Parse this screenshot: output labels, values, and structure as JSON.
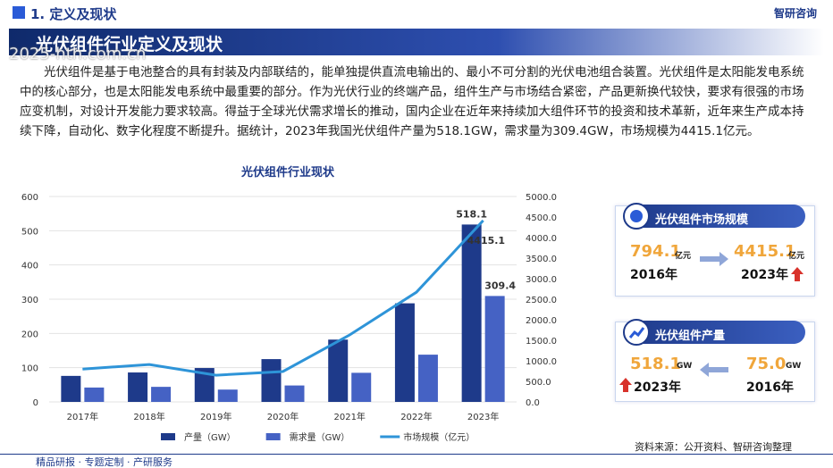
{
  "header": {
    "section": "1. 定义及现状",
    "logo": "智研咨询"
  },
  "banner": "光伏组件行业定义及现状",
  "watermark": "2025-hth.com.cn",
  "paragraph": "光伏组件是基于电池整合的具有封装及内部联结的，能单独提供直流电输出的、最小不可分割的光伏电池组合装置。光伏组件是太阳能发电系统中的核心部分，也是太阳能发电系统中最重要的部分。作为光伏行业的终端产品，组件生产与市场结合紧密，产品更新换代较快，要求有很强的市场应变机制，对设计开发能力要求较高。得益于全球光伏需求增长的推动，国内企业在近年来持续加大组件环节的投资和技术革新，近年来生产成本持续下降，自动化、数字化程度不断提升。据统计，2023年我国光伏组件产量为518.1GW，需求量为309.4GW，市场规模为4415.1亿元。",
  "chart_data": {
    "type": "bar",
    "title": "光伏组件行业现状",
    "categories": [
      "2017年",
      "2018年",
      "2019年",
      "2020年",
      "2021年",
      "2022年",
      "2023年"
    ],
    "series": [
      {
        "name": "产量（GW）",
        "color": "#1e3a8a",
        "values": [
          76,
          86,
          99,
          125,
          182,
          288,
          518.1
        ]
      },
      {
        "name": "需求量（GW）",
        "color": "#4562c4",
        "values": [
          42,
          44,
          36,
          48,
          85,
          138,
          309.4
        ]
      },
      {
        "name": "市场规模（亿元）",
        "type": "line",
        "axis": "y2",
        "color": "#2e94d8",
        "values": [
          800,
          910,
          650,
          740,
          1630,
          2670,
          4415.1
        ]
      }
    ],
    "ylim": [
      0,
      600
    ],
    "yticks": [
      0,
      100,
      200,
      300,
      400,
      500,
      600
    ],
    "y2lim": [
      0,
      5000
    ],
    "y2ticks": [
      {
        "value": 0,
        "label": "0.0"
      },
      {
        "value": 500,
        "label": "500.0"
      },
      {
        "value": 1000,
        "label": "1000.0"
      },
      {
        "value": 1500,
        "label": "1500.0"
      },
      {
        "value": 2000,
        "label": "2000.0"
      },
      {
        "value": 2500,
        "label": "2500.0"
      },
      {
        "value": 3000,
        "label": "3000.0"
      },
      {
        "value": 3500,
        "label": "3500.0"
      },
      {
        "value": 4000,
        "label": "4000.0"
      },
      {
        "value": 4500,
        "label": "4500.0"
      },
      {
        "value": 5000,
        "label": "5000.0"
      }
    ],
    "grid": true,
    "legend": "bottom"
  },
  "cards": [
    {
      "title": "光伏组件市场规模",
      "items": [
        {
          "value": "794.1",
          "unit": "亿元",
          "year": "2016年"
        },
        {
          "value": "4415.1",
          "unit": "亿元",
          "year": "2023年"
        }
      ]
    },
    {
      "title": "光伏组件产量",
      "items": [
        {
          "value": "518.1",
          "unit": "GW",
          "year": "2023年"
        },
        {
          "value": "75.0",
          "unit": "GW",
          "year": "2016年"
        }
      ]
    }
  ],
  "source": "资料来源：公开资料、智研咨询整理",
  "footer": "精品研报 · 专题定制 · 产研服务"
}
